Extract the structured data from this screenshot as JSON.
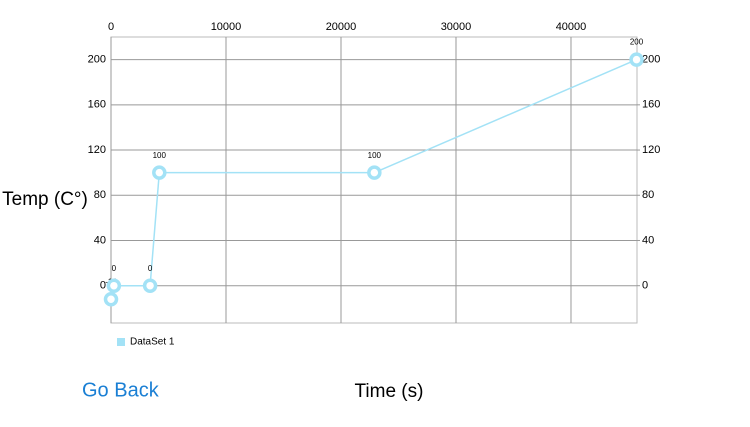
{
  "chart_data": {
    "type": "line",
    "x_label": "Time (s)",
    "y_label": "Temp (C°)",
    "x": [
      0,
      250,
      3400,
      4200,
      22900,
      45700
    ],
    "series": [
      {
        "name": "DataSet 1",
        "color": "#a3e2f6",
        "values": [
          -12,
          0,
          0,
          100,
          100,
          200
        ]
      }
    ],
    "xlim": [
      0,
      45740
    ],
    "ylim": [
      -33,
      220
    ],
    "xticks": [
      0,
      10000,
      20000,
      30000,
      40000
    ],
    "yticks": [
      0,
      40,
      80,
      120,
      160,
      200
    ],
    "y2lim": [
      -33,
      220
    ],
    "y2ticks": [
      0,
      40,
      80,
      120,
      160,
      200
    ],
    "grid": true,
    "legend": "bottom-left"
  },
  "button": {
    "label": "Go Back"
  }
}
